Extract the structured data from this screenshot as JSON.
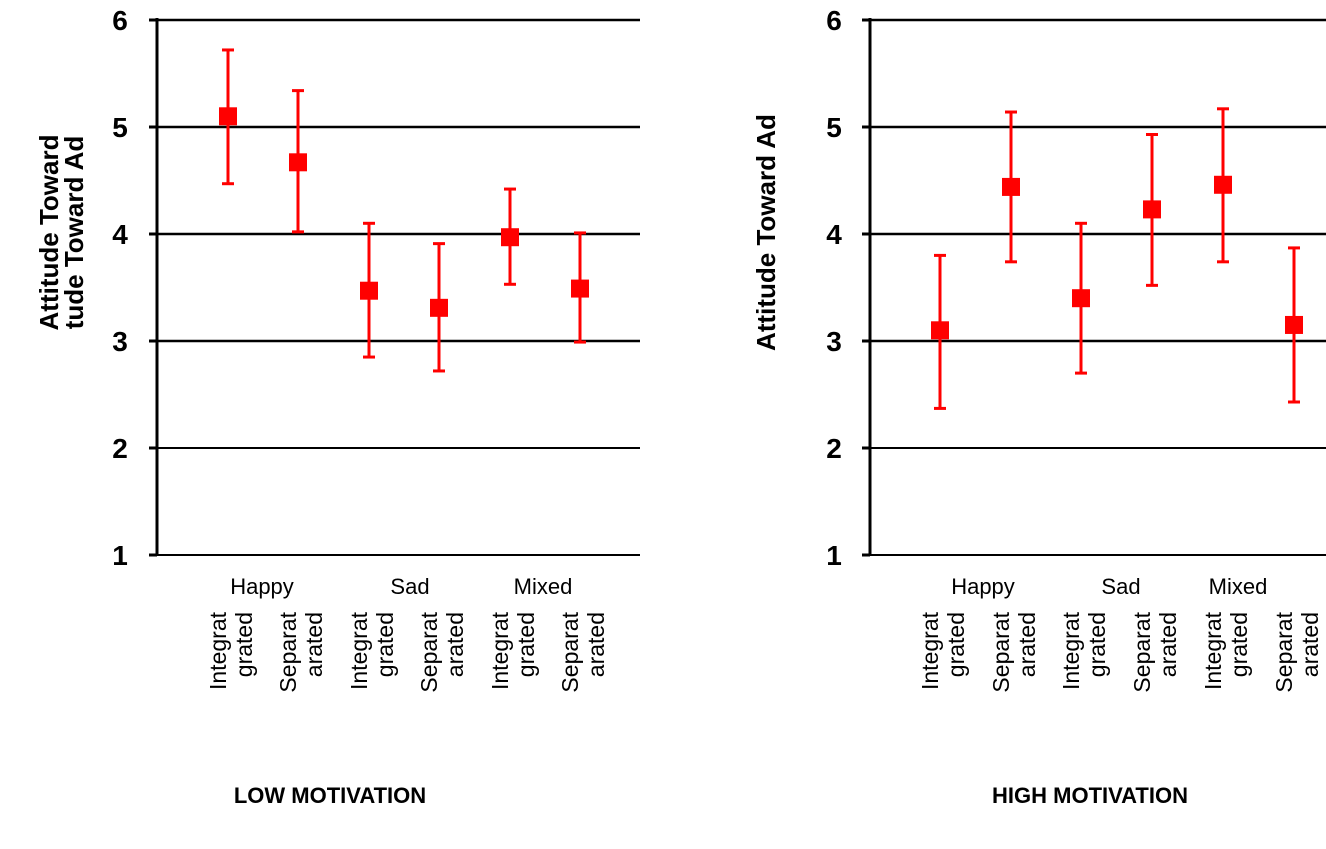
{
  "chart_data": [
    {
      "type": "scatter",
      "title": "",
      "caption": "LOW MOTIVATION",
      "ylabel_lines": [
        "Attitude Toward",
        "tude Toward Ad"
      ],
      "ylim": [
        1,
        6
      ],
      "yticks": [
        "1",
        "2",
        "3",
        "4",
        "5",
        "6"
      ],
      "grid": "horizontal",
      "groups": [
        "Happy",
        "Sad",
        "Mixed"
      ],
      "conditions": [
        {
          "lines": [
            "Integrat",
            "grated"
          ],
          "group": "Happy",
          "mean": 5.1,
          "low": 4.47,
          "high": 5.72
        },
        {
          "lines": [
            "Separat",
            "arated"
          ],
          "group": "Happy",
          "mean": 4.67,
          "low": 4.02,
          "high": 5.34
        },
        {
          "lines": [
            "Integrat",
            "grated"
          ],
          "group": "Sad",
          "mean": 3.47,
          "low": 2.85,
          "high": 4.1
        },
        {
          "lines": [
            "Separat",
            "arated"
          ],
          "group": "Sad",
          "mean": 3.31,
          "low": 2.72,
          "high": 3.91
        },
        {
          "lines": [
            "Integrat",
            "grated"
          ],
          "group": "Mixed",
          "mean": 3.97,
          "low": 3.53,
          "high": 4.42
        },
        {
          "lines": [
            "Separat",
            "arated"
          ],
          "group": "Mixed",
          "mean": 3.49,
          "low": 2.99,
          "high": 4.01
        }
      ],
      "marker_color": "#ff0000"
    },
    {
      "type": "scatter",
      "title": "",
      "caption": "HIGH MOTIVATION",
      "ylabel_lines": [
        "Attitude Toward Ad"
      ],
      "ylim": [
        1,
        6
      ],
      "yticks": [
        "1",
        "2",
        "3",
        "4",
        "5",
        "6"
      ],
      "grid": "horizontal",
      "groups": [
        "Happy",
        "Sad",
        "Mixed"
      ],
      "conditions": [
        {
          "lines": [
            "Integrat",
            "grated"
          ],
          "group": "Happy",
          "mean": 3.1,
          "low": 2.37,
          "high": 3.8
        },
        {
          "lines": [
            "Separat",
            "arated"
          ],
          "group": "Happy",
          "mean": 4.44,
          "low": 3.74,
          "high": 5.14
        },
        {
          "lines": [
            "Integrat",
            "grated"
          ],
          "group": "Sad",
          "mean": 3.4,
          "low": 2.7,
          "high": 4.1
        },
        {
          "lines": [
            "Separat",
            "arated"
          ],
          "group": "Sad",
          "mean": 4.23,
          "low": 3.52,
          "high": 4.93
        },
        {
          "lines": [
            "Integrat",
            "grated"
          ],
          "group": "Mixed",
          "mean": 4.46,
          "low": 3.74,
          "high": 5.17
        },
        {
          "lines": [
            "Separat",
            "arated"
          ],
          "group": "Mixed",
          "mean": 3.15,
          "low": 2.43,
          "high": 3.87
        }
      ],
      "marker_color": "#ff0000"
    }
  ]
}
